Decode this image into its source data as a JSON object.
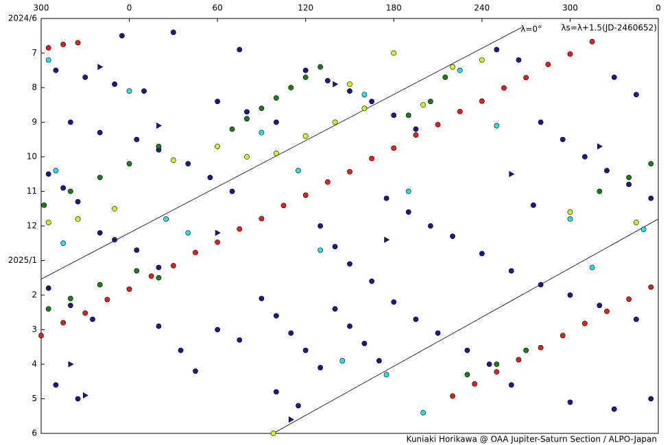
{
  "chart_data": {
    "type": "scatter",
    "annotations": [
      "λ=0°",
      "λs=λ+1.5(JD-2460652)"
    ],
    "footer": "Kuniaki Horikawa @ OAA Jupiter-Saturn Section / ALPO-Japan",
    "xlim": [
      -60,
      360
    ],
    "ylim": [
      0,
      12
    ],
    "y_inverted": true,
    "xticks": [
      {
        "value": -60,
        "label": "300"
      },
      0,
      60,
      120,
      180,
      240,
      300,
      {
        "value": 360,
        "label": "0"
      }
    ],
    "yticks": [
      {
        "value": 0,
        "label": "2024/6"
      },
      {
        "value": 1,
        "label": "7"
      },
      {
        "value": 2,
        "label": "8"
      },
      {
        "value": 3,
        "label": "9"
      },
      {
        "value": 4,
        "label": "10"
      },
      {
        "value": 5,
        "label": "11"
      },
      {
        "value": 6,
        "label": "12"
      },
      {
        "value": 7,
        "label": "2025/1"
      },
      {
        "value": 8,
        "label": "2"
      },
      {
        "value": 9,
        "label": "3"
      },
      {
        "value": 10,
        "label": "4"
      },
      {
        "value": 11,
        "label": "5"
      },
      {
        "value": 12,
        "label": "6"
      }
    ],
    "lines": [
      {
        "color": "#000000",
        "x": [
          -60,
          267
        ],
        "y": [
          7.54,
          0.26
        ]
      },
      {
        "color": "#000000",
        "x": [
          98,
          360
        ],
        "y": [
          12,
          5.8
        ]
      }
    ],
    "series": [
      {
        "color": "#1a1a80",
        "marker": "circle",
        "x": [
          -50,
          -30,
          -10,
          10,
          -40,
          -20,
          5,
          20,
          -55,
          -45,
          -35,
          -20,
          -10,
          5,
          20,
          -55,
          -40,
          -25,
          -50,
          -35,
          20,
          35,
          45,
          60,
          75,
          90,
          100,
          110,
          120,
          130,
          140,
          150,
          160,
          170,
          100,
          115,
          130,
          140,
          150,
          165,
          180,
          195,
          210,
          230,
          245,
          175,
          190,
          205,
          220,
          240,
          260,
          280,
          300,
          320,
          345,
          120,
          135,
          150,
          165,
          180,
          195,
          250,
          265,
          280,
          295,
          310,
          325,
          340,
          355,
          275,
          260,
          300,
          330,
          355,
          60,
          80,
          100,
          40,
          55,
          70,
          -5,
          30,
          75,
          330,
          345
        ],
        "y": [
          1.5,
          1.7,
          1.9,
          2.1,
          3.0,
          3.3,
          3.5,
          3.8,
          4.5,
          4.9,
          5.3,
          6.2,
          6.4,
          6.7,
          7.2,
          7.8,
          8.3,
          8.7,
          10.6,
          11.0,
          8.9,
          9.6,
          10.2,
          9.0,
          9.3,
          8.1,
          8.6,
          9.1,
          9.6,
          10.1,
          8.4,
          8.9,
          9.4,
          9.9,
          10.8,
          11.2,
          6.0,
          6.6,
          7.1,
          7.6,
          8.2,
          8.7,
          9.1,
          9.6,
          10.0,
          5.2,
          5.6,
          6.0,
          6.3,
          6.8,
          7.3,
          7.7,
          8.0,
          8.3,
          8.7,
          1.5,
          1.8,
          2.1,
          2.4,
          2.8,
          3.2,
          0.9,
          1.2,
          3.0,
          3.5,
          4.0,
          4.4,
          4.8,
          5.2,
          5.4,
          10.6,
          11.1,
          11.3,
          11.0,
          2.4,
          2.7,
          3.0,
          4.2,
          4.6,
          5.0,
          0.5,
          0.4,
          0.9,
          1.7,
          2.2
        ]
      },
      {
        "color": "#1a1a80",
        "marker": "triangle",
        "x": [
          -40,
          -20,
          60,
          140,
          175,
          260,
          320,
          110,
          20,
          -30
        ],
        "y": [
          10.0,
          1.4,
          6.2,
          1.9,
          6.4,
          4.5,
          3.7,
          11.6,
          3.1,
          10.9
        ]
      },
      {
        "color": "#33dddd",
        "marker": "circle",
        "x": [
          -55,
          -50,
          0,
          25,
          40,
          80,
          115,
          130,
          145,
          160,
          175,
          190,
          225,
          250,
          300,
          315,
          350,
          200,
          -45,
          90
        ],
        "y": [
          1.2,
          4.4,
          2.1,
          5.8,
          6.2,
          2.9,
          4.4,
          6.7,
          9.9,
          2.2,
          10.3,
          5.0,
          1.5,
          3.1,
          5.8,
          7.2,
          6.1,
          11.4,
          6.5,
          3.3
        ]
      },
      {
        "color": "#1f7a1f",
        "marker": "circle",
        "x": [
          70,
          80,
          90,
          100,
          110,
          120,
          130,
          -58,
          -40,
          -20,
          0,
          20,
          -55,
          -40,
          -20,
          190,
          205,
          215,
          230,
          250,
          270,
          320,
          340,
          355,
          20,
          5
        ],
        "y": [
          3.2,
          2.9,
          2.6,
          2.3,
          2.0,
          1.7,
          1.4,
          5.4,
          5.0,
          4.6,
          4.2,
          3.7,
          8.4,
          8.1,
          7.7,
          2.8,
          2.4,
          1.7,
          10.3,
          10.0,
          9.6,
          5.0,
          4.6,
          4.2,
          7.5,
          7.3
        ]
      },
      {
        "color": "#ccff33",
        "marker": "circle",
        "x": [
          -55,
          -35,
          -10,
          30,
          60,
          80,
          100,
          120,
          140,
          160,
          180,
          200,
          220,
          240,
          300,
          345,
          150,
          98
        ],
        "y": [
          5.9,
          5.8,
          5.5,
          4.1,
          3.7,
          4.0,
          3.9,
          3.4,
          3.0,
          2.6,
          1.0,
          2.5,
          1.4,
          1.2,
          5.6,
          5.9,
          1.9,
          12.0
        ]
      },
      {
        "color": "#dd2222",
        "marker": "circle",
        "x": [
          -60,
          -45,
          -30,
          -15,
          0,
          15,
          30,
          45,
          60,
          75,
          90,
          105,
          120,
          135,
          150,
          165,
          180,
          195,
          210,
          225,
          240,
          255,
          270,
          285,
          300,
          315,
          -55,
          -45,
          -35,
          220,
          235,
          250,
          265,
          280,
          295,
          310,
          325,
          340,
          355
        ],
        "y": [
          9.17,
          8.8,
          8.52,
          8.13,
          7.83,
          7.45,
          7.15,
          6.77,
          6.47,
          6.09,
          5.79,
          5.41,
          5.11,
          4.73,
          4.43,
          4.05,
          3.75,
          3.37,
          3.07,
          2.69,
          2.39,
          2.01,
          1.71,
          1.33,
          1.03,
          0.67,
          0.85,
          0.75,
          0.7,
          10.92,
          10.57,
          10.22,
          9.87,
          9.52,
          9.17,
          8.82,
          8.47,
          8.12,
          7.77
        ]
      }
    ]
  }
}
